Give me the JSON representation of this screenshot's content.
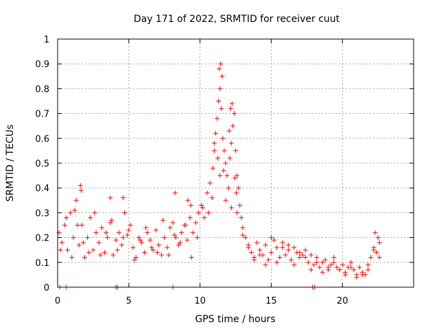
{
  "chart_data": {
    "type": "scatter",
    "title": "Day 171 of 2022, SRMTID for receiver cuut",
    "xlabel": "GPS time / hours",
    "ylabel": "SRMTID / TECUs",
    "xlim": [
      0,
      25
    ],
    "ylim": [
      0,
      1
    ],
    "xticks": [
      0,
      5,
      10,
      15,
      20
    ],
    "yticks": [
      0,
      0.1,
      0.2,
      0.3,
      0.4,
      0.5,
      0.6,
      0.7,
      0.8,
      0.9,
      1
    ],
    "grid": true,
    "marker": "+",
    "color": "#ff0000",
    "series": [
      {
        "name": "SRMTID",
        "x": [
          0.1,
          0.3,
          0.5,
          0.7,
          0.9,
          1.1,
          1.3,
          1.5,
          1.7,
          1.9,
          2.1,
          2.3,
          2.5,
          2.7,
          2.9,
          3.1,
          3.3,
          3.5,
          3.7,
          3.9,
          4.1,
          4.3,
          4.5,
          4.7,
          4.9,
          5.1,
          5.3,
          5.5,
          5.7,
          5.9,
          6.1,
          6.3,
          6.5,
          6.7,
          6.9,
          7.1,
          7.3,
          7.5,
          7.7,
          7.9,
          8.1,
          8.3,
          8.5,
          8.7,
          8.9,
          9.1,
          9.3,
          9.5,
          9.7,
          9.9,
          10.1,
          10.3,
          10.5,
          10.7,
          10.9,
          11.0,
          11.1,
          11.2,
          11.3,
          11.4,
          11.5,
          11.6,
          11.7,
          11.8,
          11.9,
          12.0,
          12.1,
          12.2,
          12.3,
          12.4,
          12.5,
          12.6,
          12.7,
          12.8,
          12.9,
          13.0,
          13.2,
          13.4,
          13.6,
          13.8,
          14.0,
          14.2,
          14.4,
          14.6,
          14.8,
          15.0,
          15.2,
          15.4,
          15.6,
          15.8,
          16.0,
          16.2,
          16.4,
          16.6,
          16.8,
          17.0,
          17.2,
          17.4,
          17.6,
          17.8,
          18.0,
          18.2,
          18.4,
          18.6,
          18.8,
          19.0,
          19.2,
          19.4,
          19.6,
          19.8,
          20.0,
          20.2,
          20.4,
          20.6,
          20.8,
          21.0,
          21.2,
          21.4,
          21.6,
          21.8,
          22.0,
          22.2,
          22.4,
          22.6,
          0.2,
          0.6,
          1.0,
          1.4,
          1.8,
          2.2,
          2.6,
          3.0,
          3.4,
          3.8,
          4.2,
          4.6,
          5.0,
          5.4,
          5.8,
          6.2,
          6.6,
          7.0,
          7.4,
          7.8,
          8.2,
          8.6,
          9.0,
          9.4,
          9.8,
          10.2,
          10.6,
          11.0,
          11.4,
          11.8,
          12.2,
          12.6,
          13.0,
          13.4,
          13.8,
          14.2,
          14.6,
          15.0,
          15.4,
          15.8,
          16.2,
          16.6,
          17.0,
          17.4,
          17.8,
          18.2,
          18.6,
          19.0,
          19.4,
          19.8,
          20.2,
          20.6,
          21.0,
          21.4,
          21.8,
          22.2,
          22.6,
          11.35,
          11.45,
          11.55,
          12.15,
          12.25,
          12.05,
          11.25,
          11.65,
          10.85,
          12.45,
          12.55,
          1.2,
          1.6,
          1.65,
          8.25,
          4.6,
          3.7,
          9.35,
          9.15,
          22.3,
          22.5,
          0.15,
          0.6,
          4.1,
          4.2,
          8.1,
          17.9,
          18.05
        ],
        "y": [
          0.22,
          0.18,
          0.25,
          0.15,
          0.3,
          0.2,
          0.35,
          0.17,
          0.25,
          0.12,
          0.2,
          0.28,
          0.15,
          0.22,
          0.18,
          0.24,
          0.14,
          0.2,
          0.26,
          0.13,
          0.19,
          0.22,
          0.17,
          0.3,
          0.21,
          0.25,
          0.16,
          0.12,
          0.2,
          0.18,
          0.14,
          0.22,
          0.19,
          0.15,
          0.23,
          0.17,
          0.13,
          0.2,
          0.16,
          0.24,
          0.26,
          0.2,
          0.17,
          0.22,
          0.25,
          0.19,
          0.28,
          0.22,
          0.26,
          0.3,
          0.33,
          0.28,
          0.38,
          0.42,
          0.48,
          0.55,
          0.62,
          0.68,
          0.75,
          0.8,
          0.72,
          0.6,
          0.55,
          0.5,
          0.45,
          0.4,
          0.52,
          0.58,
          0.65,
          0.7,
          0.55,
          0.45,
          0.4,
          0.33,
          0.28,
          0.24,
          0.2,
          0.16,
          0.14,
          0.12,
          0.18,
          0.15,
          0.13,
          0.17,
          0.11,
          0.14,
          0.19,
          0.16,
          0.12,
          0.18,
          0.13,
          0.15,
          0.11,
          0.16,
          0.14,
          0.12,
          0.13,
          0.15,
          0.1,
          0.13,
          0.09,
          0.12,
          0.08,
          0.1,
          0.11,
          0.07,
          0.09,
          0.1,
          0.08,
          0.07,
          0.09,
          0.06,
          0.08,
          0.1,
          0.07,
          0.05,
          0.08,
          0.06,
          0.05,
          0.07,
          0.12,
          0.16,
          0.14,
          0.12,
          0.15,
          0.28,
          0.12,
          0.25,
          0.18,
          0.14,
          0.3,
          0.13,
          0.22,
          0.27,
          0.15,
          0.2,
          0.23,
          0.11,
          0.19,
          0.24,
          0.16,
          0.14,
          0.27,
          0.13,
          0.21,
          0.18,
          0.25,
          0.12,
          0.2,
          0.32,
          0.3,
          0.58,
          0.45,
          0.35,
          0.32,
          0.3,
          0.21,
          0.17,
          0.11,
          0.13,
          0.09,
          0.2,
          0.1,
          0.16,
          0.17,
          0.09,
          0.14,
          0.12,
          0.07,
          0.1,
          0.06,
          0.08,
          0.12,
          0.07,
          0.05,
          0.08,
          0.04,
          0.05,
          0.09,
          0.15,
          0.18,
          0.88,
          0.9,
          0.85,
          0.72,
          0.74,
          0.63,
          0.52,
          0.47,
          0.36,
          0.44,
          0.38,
          0.31,
          0.41,
          0.39,
          0.38,
          0.36,
          0.36,
          0.33,
          0.35,
          0.22,
          0.2,
          0.0,
          0.0,
          0.0,
          0.0,
          0.0,
          0.0,
          0.0
        ]
      }
    ]
  }
}
